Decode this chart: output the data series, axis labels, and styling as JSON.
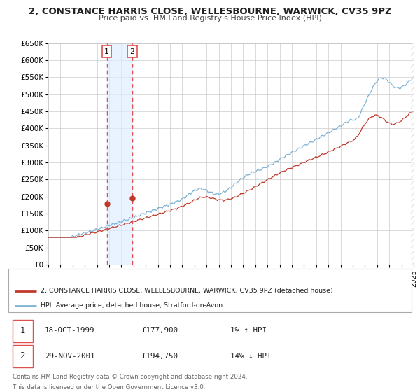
{
  "title": "2, CONSTANCE HARRIS CLOSE, WELLESBOURNE, WARWICK, CV35 9PZ",
  "subtitle": "Price paid vs. HM Land Registry's House Price Index (HPI)",
  "xlim": [
    1995.0,
    2025.0
  ],
  "ylim": [
    0,
    650000
  ],
  "yticks": [
    0,
    50000,
    100000,
    150000,
    200000,
    250000,
    300000,
    350000,
    400000,
    450000,
    500000,
    550000,
    600000,
    650000
  ],
  "ytick_labels": [
    "£0",
    "£50K",
    "£100K",
    "£150K",
    "£200K",
    "£250K",
    "£300K",
    "£350K",
    "£400K",
    "£450K",
    "£500K",
    "£550K",
    "£600K",
    "£650K"
  ],
  "sale1_date": 1999.8,
  "sale1_price": 177900,
  "sale1_label": "1",
  "sale1_date_str": "18-OCT-1999",
  "sale1_price_str": "£177,900",
  "sale1_hpi_str": "1% ↑ HPI",
  "sale2_date": 2001.9,
  "sale2_price": 194750,
  "sale2_label": "2",
  "sale2_date_str": "29-NOV-2001",
  "sale2_price_str": "£194,750",
  "sale2_hpi_str": "14% ↓ HPI",
  "red_color": "#c0392b",
  "blue_color": "#7fb3d3",
  "shade_color": "#ddeeff",
  "grid_color": "#cccccc",
  "vline_color": "#e05050",
  "bg_color": "#ffffff",
  "legend1_text": "2, CONSTANCE HARRIS CLOSE, WELLESBOURNE, WARWICK, CV35 9PZ (detached house)",
  "legend2_text": "HPI: Average price, detached house, Stratford-on-Avon",
  "footer1": "Contains HM Land Registry data © Crown copyright and database right 2024.",
  "footer2": "This data is licensed under the Open Government Licence v3.0."
}
